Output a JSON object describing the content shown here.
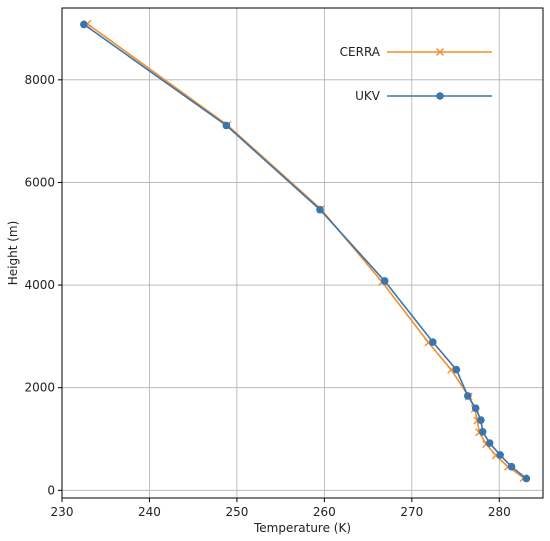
{
  "chart_data": {
    "type": "line",
    "title": "",
    "xlabel": "Temperature (K)",
    "ylabel": "Height (m)",
    "xlim": [
      230,
      285
    ],
    "ylim": [
      -150,
      9400
    ],
    "xticks": [
      230,
      240,
      250,
      260,
      270,
      280
    ],
    "yticks": [
      0,
      2000,
      4000,
      6000,
      8000
    ],
    "grid": true,
    "legend_position": "top-right",
    "series": [
      {
        "name": "CERRA",
        "color": "#f28e2b",
        "marker": "x",
        "points": [
          [
            282.8,
            240
          ],
          [
            281.0,
            460
          ],
          [
            279.6,
            680
          ],
          [
            278.5,
            900
          ],
          [
            277.7,
            1130
          ],
          [
            277.5,
            1360
          ],
          [
            277.2,
            1590
          ],
          [
            276.5,
            1830
          ],
          [
            274.5,
            2350
          ],
          [
            271.9,
            2880
          ],
          [
            266.6,
            4060
          ],
          [
            259.6,
            5480
          ],
          [
            248.9,
            7120
          ],
          [
            232.9,
            9090
          ]
        ]
      },
      {
        "name": "UKV",
        "color": "#3a75b0",
        "marker": "o",
        "points": [
          [
            283.1,
            230
          ],
          [
            281.4,
            460
          ],
          [
            280.1,
            690
          ],
          [
            278.9,
            920
          ],
          [
            278.1,
            1140
          ],
          [
            277.9,
            1370
          ],
          [
            277.3,
            1600
          ],
          [
            276.4,
            1840
          ],
          [
            275.1,
            2350
          ],
          [
            272.4,
            2890
          ],
          [
            266.9,
            4080
          ],
          [
            259.5,
            5470
          ],
          [
            248.8,
            7110
          ],
          [
            232.5,
            9080
          ]
        ]
      }
    ]
  }
}
